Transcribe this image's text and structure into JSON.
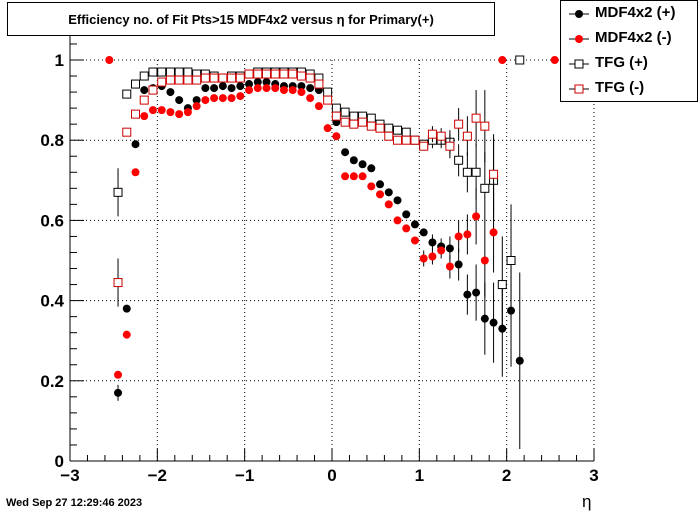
{
  "title": "Efficiency no. of Fit Pts>15 MDF4x2 versus η for Primary(+)",
  "timestamp": "Wed Sep 27 12:29:46 2023",
  "legend": [
    {
      "label": "MDF4x2 (+)",
      "color": "#000000",
      "marker": "filled-circle"
    },
    {
      "label": "MDF4x2 (-)",
      "color": "#ff0000",
      "marker": "filled-circle"
    },
    {
      "label": "TFG (+)",
      "color": "#000000",
      "marker": "open-square"
    },
    {
      "label": "TFG (-)",
      "color": "#cc0000",
      "marker": "open-square"
    }
  ],
  "chart_data": {
    "type": "scatter",
    "title": "Efficiency no. of Fit Pts>15 MDF4x2 versus η for Primary(+)",
    "xlabel": "η",
    "ylabel": "",
    "xlim": [
      -3,
      3
    ],
    "ylim": [
      0,
      1.05
    ],
    "x_ticks": [
      "−3",
      "−2",
      "−1",
      "0",
      "1",
      "2",
      "3"
    ],
    "y_ticks": [
      "0",
      "0.2",
      "0.4",
      "0.6",
      "0.8",
      "1"
    ],
    "grid": true,
    "legend_position": "top-right",
    "series": [
      {
        "name": "MDF4x2 (+)",
        "color": "#000000",
        "marker": "filled-circle",
        "points": [
          [
            -2.45,
            0.17,
            0.02
          ],
          [
            -2.35,
            0.38,
            0
          ],
          [
            -2.25,
            0.79,
            0
          ],
          [
            -2.15,
            0.925,
            0
          ],
          [
            -2.05,
            0.93,
            0
          ],
          [
            -1.95,
            0.935,
            0
          ],
          [
            -1.85,
            0.92,
            0
          ],
          [
            -1.75,
            0.9,
            0
          ],
          [
            -1.65,
            0.88,
            0
          ],
          [
            -1.55,
            0.9,
            0
          ],
          [
            -1.45,
            0.93,
            0
          ],
          [
            -1.35,
            0.93,
            0
          ],
          [
            -1.25,
            0.935,
            0
          ],
          [
            -1.15,
            0.93,
            0
          ],
          [
            -1.05,
            0.935,
            0
          ],
          [
            -0.95,
            0.94,
            0
          ],
          [
            -0.85,
            0.945,
            0
          ],
          [
            -0.75,
            0.945,
            0
          ],
          [
            -0.65,
            0.94,
            0
          ],
          [
            -0.55,
            0.935,
            0
          ],
          [
            -0.45,
            0.935,
            0
          ],
          [
            -0.35,
            0.935,
            0
          ],
          [
            -0.25,
            0.93,
            0
          ],
          [
            -0.15,
            0.925,
            0
          ],
          [
            -0.05,
            0.91,
            0
          ],
          [
            0.05,
            0.845,
            0
          ],
          [
            0.15,
            0.77,
            0
          ],
          [
            0.25,
            0.75,
            0
          ],
          [
            0.35,
            0.74,
            0
          ],
          [
            0.45,
            0.73,
            0
          ],
          [
            0.55,
            0.69,
            0
          ],
          [
            0.65,
            0.67,
            0
          ],
          [
            0.75,
            0.65,
            0
          ],
          [
            0.85,
            0.615,
            0
          ],
          [
            0.95,
            0.59,
            0
          ],
          [
            1.05,
            0.57,
            0
          ],
          [
            1.15,
            0.545,
            0.02
          ],
          [
            1.25,
            0.535,
            0.02
          ],
          [
            1.35,
            0.53,
            0.03
          ],
          [
            1.45,
            0.49,
            0.04
          ],
          [
            1.55,
            0.415,
            0.05
          ],
          [
            1.65,
            0.42,
            0.07
          ],
          [
            1.75,
            0.355,
            0.09
          ],
          [
            1.85,
            0.345,
            0.1
          ],
          [
            1.95,
            0.33,
            0.12
          ],
          [
            2.05,
            0.375,
            0.14
          ],
          [
            2.15,
            0.25,
            0.22
          ]
        ]
      },
      {
        "name": "MDF4x2 (-)",
        "color": "#ff0000",
        "marker": "filled-circle",
        "points": [
          [
            -2.55,
            1.0,
            0
          ],
          [
            -2.45,
            0.215,
            0
          ],
          [
            -2.35,
            0.315,
            0
          ],
          [
            -2.25,
            0.72,
            0
          ],
          [
            -2.15,
            0.86,
            0
          ],
          [
            -2.05,
            0.875,
            0
          ],
          [
            -1.95,
            0.875,
            0
          ],
          [
            -1.85,
            0.87,
            0
          ],
          [
            -1.75,
            0.865,
            0
          ],
          [
            -1.65,
            0.87,
            0
          ],
          [
            -1.55,
            0.885,
            0
          ],
          [
            -1.45,
            0.9,
            0
          ],
          [
            -1.35,
            0.905,
            0
          ],
          [
            -1.25,
            0.905,
            0
          ],
          [
            -1.15,
            0.905,
            0
          ],
          [
            -1.05,
            0.91,
            0
          ],
          [
            -0.95,
            0.925,
            0
          ],
          [
            -0.85,
            0.93,
            0
          ],
          [
            -0.75,
            0.93,
            0
          ],
          [
            -0.65,
            0.93,
            0
          ],
          [
            -0.55,
            0.925,
            0
          ],
          [
            -0.45,
            0.925,
            0
          ],
          [
            -0.35,
            0.92,
            0
          ],
          [
            -0.25,
            0.905,
            0
          ],
          [
            -0.15,
            0.885,
            0
          ],
          [
            -0.05,
            0.83,
            0
          ],
          [
            0.05,
            0.81,
            0
          ],
          [
            0.15,
            0.71,
            0
          ],
          [
            0.25,
            0.71,
            0
          ],
          [
            0.35,
            0.71,
            0
          ],
          [
            0.45,
            0.685,
            0
          ],
          [
            0.55,
            0.665,
            0
          ],
          [
            0.65,
            0.64,
            0
          ],
          [
            0.75,
            0.6,
            0
          ],
          [
            0.85,
            0.58,
            0
          ],
          [
            0.95,
            0.55,
            0
          ],
          [
            1.05,
            0.505,
            0.02
          ],
          [
            1.15,
            0.51,
            0.02
          ],
          [
            1.25,
            0.525,
            0.02
          ],
          [
            1.35,
            0.485,
            0.03
          ],
          [
            1.45,
            0.56,
            0.04
          ],
          [
            1.55,
            0.565,
            0.05
          ],
          [
            1.65,
            0.61,
            0.07
          ],
          [
            1.75,
            0.5,
            0.09
          ],
          [
            1.85,
            0.57,
            0.1
          ],
          [
            1.95,
            1.0,
            0
          ],
          [
            2.55,
            1.0,
            0
          ]
        ]
      },
      {
        "name": "TFG (+)",
        "color": "#000000",
        "marker": "open-square",
        "points": [
          [
            -2.45,
            0.67,
            0.06
          ],
          [
            -2.35,
            0.915,
            0
          ],
          [
            -2.25,
            0.94,
            0
          ],
          [
            -2.15,
            0.96,
            0
          ],
          [
            -2.05,
            0.97,
            0
          ],
          [
            -1.95,
            0.97,
            0
          ],
          [
            -1.85,
            0.97,
            0
          ],
          [
            -1.75,
            0.97,
            0
          ],
          [
            -1.65,
            0.97,
            0
          ],
          [
            -1.55,
            0.965,
            0
          ],
          [
            -1.45,
            0.965,
            0
          ],
          [
            -1.35,
            0.96,
            0
          ],
          [
            -1.25,
            0.955,
            0
          ],
          [
            -1.15,
            0.96,
            0
          ],
          [
            -1.05,
            0.96,
            0
          ],
          [
            -0.95,
            0.965,
            0
          ],
          [
            -0.85,
            0.97,
            0
          ],
          [
            -0.75,
            0.97,
            0
          ],
          [
            -0.65,
            0.97,
            0
          ],
          [
            -0.55,
            0.97,
            0
          ],
          [
            -0.45,
            0.97,
            0
          ],
          [
            -0.35,
            0.97,
            0
          ],
          [
            -0.25,
            0.965,
            0
          ],
          [
            -0.15,
            0.955,
            0
          ],
          [
            -0.05,
            0.92,
            0
          ],
          [
            0.05,
            0.88,
            0
          ],
          [
            0.15,
            0.87,
            0
          ],
          [
            0.25,
            0.86,
            0
          ],
          [
            0.35,
            0.86,
            0
          ],
          [
            0.45,
            0.855,
            0
          ],
          [
            0.55,
            0.84,
            0
          ],
          [
            0.65,
            0.83,
            0
          ],
          [
            0.75,
            0.825,
            0
          ],
          [
            0.85,
            0.82,
            0
          ],
          [
            0.95,
            0.8,
            0
          ],
          [
            1.05,
            0.79,
            0
          ],
          [
            1.15,
            0.8,
            0.02
          ],
          [
            1.25,
            0.8,
            0.02
          ],
          [
            1.35,
            0.795,
            0.03
          ],
          [
            1.45,
            0.75,
            0.04
          ],
          [
            1.55,
            0.72,
            0.05
          ],
          [
            1.65,
            0.72,
            0.07
          ],
          [
            1.75,
            0.68,
            0.09
          ],
          [
            1.85,
            0.7,
            0.1
          ],
          [
            1.95,
            0.44,
            0.12
          ],
          [
            2.05,
            0.5,
            0.14
          ],
          [
            2.15,
            1.0,
            0
          ]
        ]
      },
      {
        "name": "TFG (-)",
        "color": "#cc0000",
        "marker": "open-square",
        "points": [
          [
            -2.45,
            0.445,
            0.06
          ],
          [
            -2.35,
            0.82,
            0
          ],
          [
            -2.25,
            0.865,
            0
          ],
          [
            -2.15,
            0.9,
            0
          ],
          [
            -2.05,
            0.925,
            0
          ],
          [
            -1.95,
            0.945,
            0
          ],
          [
            -1.85,
            0.95,
            0
          ],
          [
            -1.75,
            0.95,
            0
          ],
          [
            -1.65,
            0.95,
            0
          ],
          [
            -1.55,
            0.95,
            0
          ],
          [
            -1.45,
            0.955,
            0
          ],
          [
            -1.35,
            0.955,
            0
          ],
          [
            -1.25,
            0.955,
            0
          ],
          [
            -1.15,
            0.955,
            0
          ],
          [
            -1.05,
            0.955,
            0
          ],
          [
            -0.95,
            0.965,
            0
          ],
          [
            -0.85,
            0.965,
            0
          ],
          [
            -0.75,
            0.965,
            0
          ],
          [
            -0.65,
            0.965,
            0
          ],
          [
            -0.55,
            0.965,
            0
          ],
          [
            -0.45,
            0.965,
            0
          ],
          [
            -0.35,
            0.96,
            0
          ],
          [
            -0.25,
            0.955,
            0
          ],
          [
            -0.15,
            0.94,
            0
          ],
          [
            -0.05,
            0.9,
            0
          ],
          [
            0.05,
            0.86,
            0
          ],
          [
            0.15,
            0.845,
            0
          ],
          [
            0.25,
            0.84,
            0
          ],
          [
            0.35,
            0.845,
            0
          ],
          [
            0.45,
            0.835,
            0
          ],
          [
            0.55,
            0.83,
            0
          ],
          [
            0.65,
            0.81,
            0
          ],
          [
            0.75,
            0.8,
            0
          ],
          [
            0.85,
            0.8,
            0
          ],
          [
            0.95,
            0.8,
            0
          ],
          [
            1.05,
            0.785,
            0
          ],
          [
            1.15,
            0.815,
            0.02
          ],
          [
            1.25,
            0.81,
            0.02
          ],
          [
            1.35,
            0.785,
            0.03
          ],
          [
            1.45,
            0.84,
            0.04
          ],
          [
            1.55,
            0.81,
            0.05
          ],
          [
            1.65,
            0.855,
            0.07
          ],
          [
            1.75,
            0.835,
            0.09
          ],
          [
            1.85,
            0.715,
            0.1
          ]
        ]
      }
    ]
  }
}
